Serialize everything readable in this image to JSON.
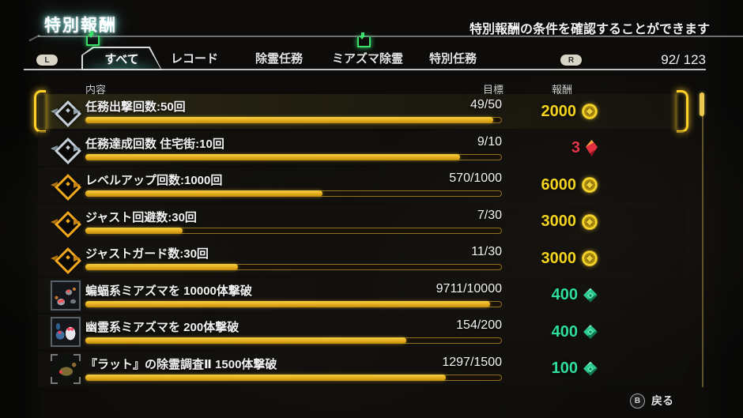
{
  "header": {
    "title": "特別報酬",
    "hint": "特別報酬の条件を確認することができます"
  },
  "tab_bar": {
    "l_button": "L",
    "r_button": "R",
    "count": "92/ 123",
    "tabs": [
      {
        "label": "すべて",
        "selected": true,
        "new_badge": true
      },
      {
        "label": "レコード",
        "selected": false,
        "new_badge": false
      },
      {
        "label": "除霊任務",
        "selected": false,
        "new_badge": false
      },
      {
        "label": "ミアズマ除霊",
        "selected": false,
        "new_badge": true
      },
      {
        "label": "特別任務",
        "selected": false,
        "new_badge": false
      }
    ]
  },
  "table": {
    "columns": {
      "content": "内容",
      "goal": "目標",
      "reward": "報酬"
    },
    "rows": [
      {
        "icon": "emblem-silver",
        "title": "任務出撃回数:50回",
        "goal": "49/50",
        "progress": 0.98,
        "reward": "2000",
        "reward_icon": "coin",
        "reward_color": "#f5d41e",
        "selected": true
      },
      {
        "icon": "emblem-silver",
        "title": "任務達成回数 住宅街:10回",
        "goal": "9/10",
        "progress": 0.9,
        "reward": "3",
        "reward_icon": "gem-red",
        "reward_color": "#e23848",
        "selected": false
      },
      {
        "icon": "emblem-gold",
        "title": "レベルアップ回数:1000回",
        "goal": "570/1000",
        "progress": 0.57,
        "reward": "6000",
        "reward_icon": "coin",
        "reward_color": "#f5d41e",
        "selected": false
      },
      {
        "icon": "emblem-gold",
        "title": "ジャスト回避数:30回",
        "goal": "7/30",
        "progress": 0.233,
        "reward": "3000",
        "reward_icon": "coin",
        "reward_color": "#f5d41e",
        "selected": false
      },
      {
        "icon": "emblem-gold",
        "title": "ジャストガード数:30回",
        "goal": "11/30",
        "progress": 0.367,
        "reward": "3000",
        "reward_icon": "coin",
        "reward_color": "#f5d41e",
        "selected": false
      },
      {
        "icon": "portrait-bats",
        "title": "蝙蝠系ミアズマを 10000体撃破",
        "goal": "9711/10000",
        "progress": 0.971,
        "reward": "400",
        "reward_icon": "gem-green",
        "reward_color": "#2ede9a",
        "selected": false
      },
      {
        "icon": "portrait-ghosts",
        "title": "幽霊系ミアズマを 200体撃破",
        "goal": "154/200",
        "progress": 0.77,
        "reward": "400",
        "reward_icon": "gem-green",
        "reward_color": "#2ede9a",
        "selected": false
      },
      {
        "icon": "portrait-rat",
        "title": "『ラット』の除霊調査Ⅱ 1500体撃破",
        "goal": "1297/1500",
        "progress": 0.865,
        "reward": "100",
        "reward_icon": "gem-green",
        "reward_color": "#2ede9a",
        "selected": false
      }
    ]
  },
  "footer": {
    "back_button": "B",
    "back_label": "戻る"
  },
  "colors": {
    "accent_gold": "#ffd029",
    "coin": "#f5d41e",
    "gem_red": "#e23848",
    "gem_green": "#2ede9a",
    "badge_green": "#3ae06a"
  }
}
